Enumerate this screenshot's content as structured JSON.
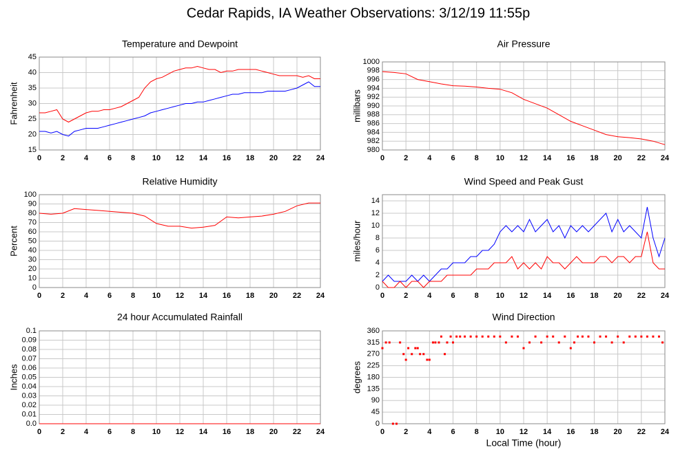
{
  "page_title": "Cedar Rapids, IA Weather Observations: 3/12/19 11:55p",
  "chart_data": [
    {
      "type": "line",
      "title": "Temperature and Dewpoint",
      "y_label": "Fahrenheit",
      "x": [
        0,
        0.5,
        1,
        1.5,
        2,
        2.5,
        3,
        3.5,
        4,
        4.5,
        5,
        5.5,
        6,
        6.5,
        7,
        7.5,
        8,
        8.5,
        9,
        9.5,
        10,
        10.5,
        11,
        11.5,
        12,
        12.5,
        13,
        13.5,
        14,
        14.5,
        15,
        15.5,
        16,
        16.5,
        17,
        17.5,
        18,
        18.5,
        19,
        19.5,
        20,
        20.5,
        21,
        21.5,
        22,
        22.5,
        23,
        23.5,
        24
      ],
      "series": [
        {
          "color": "#ff0000",
          "values": [
            27,
            27,
            27.5,
            28,
            25,
            24,
            25,
            26,
            27,
            27.5,
            27.5,
            28,
            28,
            28.5,
            29,
            30,
            31,
            32,
            35,
            37,
            38,
            38.5,
            39.5,
            40.5,
            41,
            41.5,
            41.5,
            42,
            41.5,
            41,
            41,
            40,
            40.5,
            40.5,
            41,
            41,
            41,
            41,
            40.5,
            40,
            39.5,
            39,
            39,
            39,
            39,
            38.5,
            39,
            38,
            38
          ]
        },
        {
          "color": "#0000ff",
          "values": [
            21,
            21,
            20.5,
            21,
            20,
            19.5,
            21,
            21.5,
            22,
            22,
            22,
            22.5,
            23,
            23.5,
            24,
            24.5,
            25,
            25.5,
            26,
            27,
            27.5,
            28,
            28.5,
            29,
            29.5,
            30,
            30,
            30.5,
            30.5,
            31,
            31.5,
            32,
            32.5,
            33,
            33,
            33.5,
            33.5,
            33.5,
            33.5,
            34,
            34,
            34,
            34,
            34.5,
            35,
            36,
            37,
            35.5,
            35.5
          ]
        }
      ],
      "xlim": [
        0,
        24
      ],
      "xticks": [
        0,
        2,
        4,
        6,
        8,
        10,
        12,
        14,
        16,
        18,
        20,
        22,
        24
      ],
      "ylim": [
        15,
        45
      ],
      "yticks": [
        15,
        20,
        25,
        30,
        35,
        40,
        45
      ],
      "grid": true
    },
    {
      "type": "line",
      "title": "Air Pressure",
      "y_label": "millibars",
      "x": [
        0,
        1,
        2,
        3,
        4,
        5,
        6,
        7,
        8,
        9,
        10,
        11,
        12,
        13,
        14,
        15,
        16,
        17,
        18,
        19,
        20,
        21,
        22,
        23,
        24
      ],
      "values": [
        997.8,
        997.6,
        997.3,
        996,
        995.5,
        995,
        994.6,
        994.5,
        994.3,
        994,
        993.8,
        993,
        991.5,
        990.5,
        989.5,
        988,
        986.5,
        985.5,
        984.5,
        983.5,
        983,
        982.8,
        982.5,
        982,
        981.2
      ],
      "color": "#ff0000",
      "xlim": [
        0,
        24
      ],
      "xticks": [
        0,
        2,
        4,
        6,
        8,
        10,
        12,
        14,
        16,
        18,
        20,
        22,
        24
      ],
      "ylim": [
        980,
        1000
      ],
      "yticks": [
        980,
        982,
        984,
        986,
        988,
        990,
        992,
        994,
        996,
        998,
        1000
      ],
      "grid": true
    },
    {
      "type": "line",
      "title": "Relative Humidity",
      "y_label": "Percent",
      "x": [
        0,
        1,
        2,
        3,
        4,
        5,
        6,
        7,
        8,
        9,
        10,
        11,
        12,
        13,
        14,
        15,
        16,
        17,
        18,
        19,
        20,
        21,
        22,
        23,
        24
      ],
      "values": [
        80,
        79,
        80,
        85,
        84,
        83,
        82,
        81,
        80,
        77,
        69,
        66,
        66,
        64,
        65,
        67,
        76,
        75,
        76,
        77,
        79,
        82,
        88,
        91,
        91
      ],
      "color": "#ff0000",
      "xlim": [
        0,
        24
      ],
      "xticks": [
        0,
        2,
        4,
        6,
        8,
        10,
        12,
        14,
        16,
        18,
        20,
        22,
        24
      ],
      "ylim": [
        0,
        100
      ],
      "yticks": [
        0,
        10,
        20,
        30,
        40,
        50,
        60,
        70,
        80,
        90,
        100
      ],
      "grid": true
    },
    {
      "type": "line",
      "title": "Wind Speed and Peak Gust",
      "y_label": "miles/hour",
      "x": [
        0,
        0.5,
        1,
        1.5,
        2,
        2.5,
        3,
        3.5,
        4,
        4.5,
        5,
        5.5,
        6,
        6.5,
        7,
        7.5,
        8,
        8.5,
        9,
        9.5,
        10,
        10.5,
        11,
        11.5,
        12,
        12.5,
        13,
        13.5,
        14,
        14.5,
        15,
        15.5,
        16,
        16.5,
        17,
        17.5,
        18,
        18.5,
        19,
        19.5,
        20,
        20.5,
        21,
        21.5,
        22,
        22.5,
        23,
        23.5,
        24
      ],
      "series": [
        {
          "color": "#0000ff",
          "values": [
            1,
            2,
            1,
            1,
            1,
            2,
            1,
            2,
            1,
            2,
            3,
            3,
            4,
            4,
            4,
            5,
            5,
            6,
            6,
            7,
            9,
            10,
            9,
            10,
            9,
            11,
            9,
            10,
            11,
            9,
            10,
            8,
            10,
            9,
            10,
            9,
            10,
            11,
            12,
            9,
            11,
            9,
            10,
            9,
            8,
            13,
            8,
            5,
            8
          ]
        },
        {
          "color": "#ff0000",
          "values": [
            1,
            0,
            0,
            1,
            0,
            1,
            1,
            0,
            1,
            1,
            1,
            2,
            2,
            2,
            2,
            2,
            3,
            3,
            3,
            4,
            4,
            4,
            5,
            3,
            4,
            3,
            4,
            3,
            5,
            4,
            4,
            3,
            4,
            5,
            4,
            4,
            4,
            5,
            5,
            4,
            5,
            5,
            4,
            5,
            5,
            9,
            4,
            3,
            3
          ]
        }
      ],
      "xlim": [
        0,
        24
      ],
      "xticks": [
        0,
        2,
        4,
        6,
        8,
        10,
        12,
        14,
        16,
        18,
        20,
        22,
        24
      ],
      "ylim": [
        0,
        15
      ],
      "yticks": [
        0,
        2,
        4,
        6,
        8,
        10,
        12,
        14
      ],
      "grid": true
    },
    {
      "type": "line",
      "title": "24 hour Accumulated Rainfall",
      "y_label": "Inches",
      "x": [
        0,
        2,
        4,
        6,
        8,
        10,
        12,
        14,
        16,
        18,
        20,
        22,
        24
      ],
      "values": [
        0,
        0,
        0,
        0,
        0,
        0,
        0,
        0,
        0,
        0,
        0,
        0,
        0
      ],
      "color": "#ff0000",
      "xlim": [
        0,
        24
      ],
      "xticks": [
        0,
        2,
        4,
        6,
        8,
        10,
        12,
        14,
        16,
        18,
        20,
        22,
        24
      ],
      "ylim": [
        0,
        0.1
      ],
      "yticks": [
        {
          "value": 0,
          "label": "0.0"
        },
        0.01,
        0.02,
        0.03,
        0.04,
        0.05,
        0.06,
        0.07,
        0.08,
        0.09,
        0.1
      ],
      "grid": true
    },
    {
      "type": "scatter",
      "title": "Wind Direction",
      "y_label": "degrees",
      "x_label": "Local Time (hour)",
      "x": [
        0,
        0.3,
        0.6,
        0.9,
        1.2,
        1.5,
        1.8,
        2,
        2.2,
        2.5,
        2.8,
        3,
        3.2,
        3.5,
        3.8,
        4,
        4.3,
        4.5,
        4.8,
        5,
        5.3,
        5.5,
        5.8,
        6,
        6.3,
        6.6,
        7,
        7.5,
        8,
        8.5,
        9,
        9.5,
        10,
        10.5,
        11,
        11.5,
        12,
        12.5,
        13,
        13.5,
        14,
        14.5,
        15,
        15.5,
        16,
        16.3,
        16.6,
        17,
        17.5,
        18,
        18.5,
        19,
        19.5,
        20,
        20.5,
        21,
        21.5,
        22,
        22.5,
        23,
        23.5,
        23.8
      ],
      "values": [
        293,
        315,
        315,
        0,
        0,
        315,
        270,
        248,
        293,
        270,
        293,
        293,
        270,
        270,
        248,
        248,
        315,
        315,
        315,
        338,
        270,
        315,
        338,
        315,
        338,
        338,
        338,
        338,
        338,
        338,
        338,
        338,
        338,
        315,
        338,
        338,
        293,
        315,
        338,
        315,
        338,
        338,
        315,
        338,
        293,
        315,
        338,
        338,
        338,
        315,
        338,
        338,
        315,
        338,
        315,
        338,
        338,
        338,
        338,
        338,
        338,
        315
      ],
      "color": "#ff0000",
      "xlim": [
        0,
        24
      ],
      "xticks": [
        0,
        2,
        4,
        6,
        8,
        10,
        12,
        14,
        16,
        18,
        20,
        22,
        24
      ],
      "ylim": [
        0,
        360
      ],
      "yticks": [
        0,
        45,
        90,
        135,
        180,
        225,
        270,
        315,
        360
      ],
      "grid": true
    }
  ]
}
